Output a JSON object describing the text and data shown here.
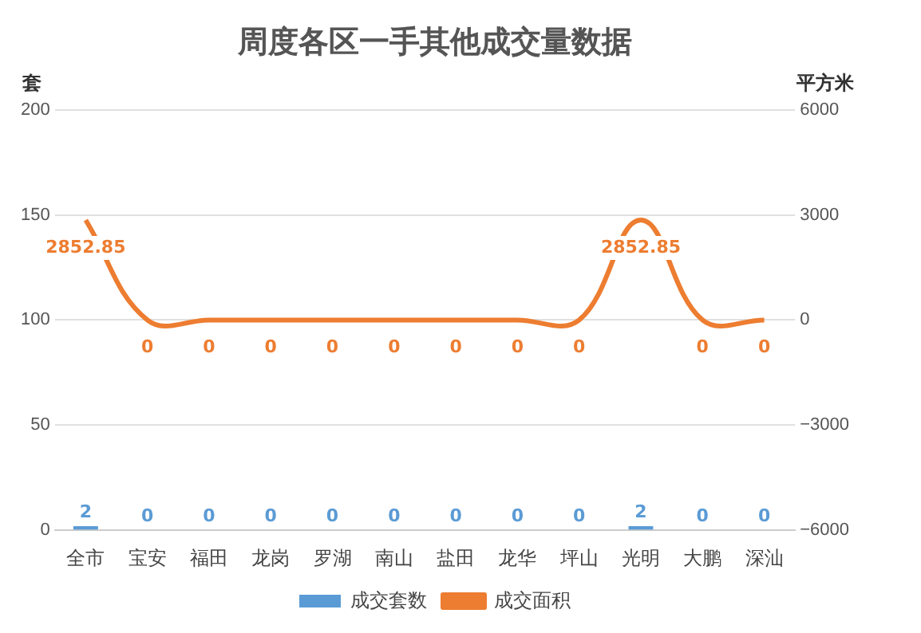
{
  "chart_data": {
    "type": "bar",
    "title": "周度各区一手其他成交量数据",
    "ylabel": "套",
    "y2label": "平方米",
    "categories": [
      "全市",
      "宝安",
      "福田",
      "龙岗",
      "罗湖",
      "南山",
      "盐田",
      "龙华",
      "坪山",
      "光明",
      "大鹏",
      "深汕"
    ],
    "series": [
      {
        "name": "成交套数",
        "color": "#5b9bd5",
        "values": [
          2,
          0,
          0,
          0,
          0,
          0,
          0,
          0,
          0,
          2,
          0,
          0
        ]
      },
      {
        "name": "成交面积",
        "type": "line",
        "axis": "y2",
        "color": "#ed7d31",
        "values": [
          2852.85,
          0,
          0,
          0,
          0,
          0,
          0,
          0,
          0,
          2852.85,
          0,
          0
        ]
      }
    ],
    "ylim": [
      0,
      200
    ],
    "yticks": [
      0,
      50,
      100,
      150,
      200
    ],
    "y2lim": [
      -6000,
      6000
    ],
    "y2ticks": [
      {
        "value": -6000,
        "label": "−6000"
      },
      {
        "value": -3000,
        "label": "−3000"
      },
      0,
      3000,
      6000
    ],
    "grid": "y",
    "legend": "bottom",
    "data_labels": true,
    "marker": "none"
  }
}
